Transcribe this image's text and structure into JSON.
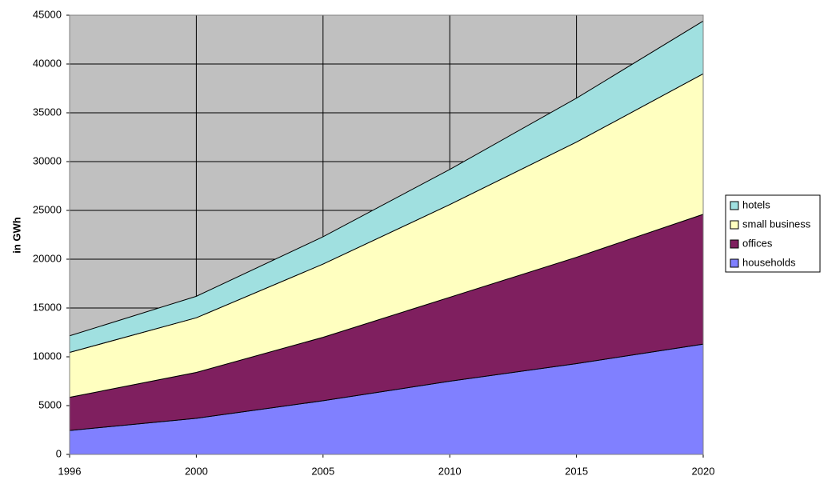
{
  "chart_data": {
    "type": "stacked_area",
    "y_label": "in GWh",
    "categories": [
      "1996",
      "2000",
      "2005",
      "2010",
      "2015",
      "2020"
    ],
    "series": [
      {
        "name": "households",
        "color": "#8080ff",
        "values": [
          2450,
          3700,
          5500,
          7500,
          9300,
          11300
        ]
      },
      {
        "name": "offices",
        "color": "#7f1f5f",
        "values": [
          3400,
          4700,
          6500,
          8600,
          10900,
          13300
        ]
      },
      {
        "name": "small business",
        "color": "#ffffc0",
        "values": [
          4600,
          5600,
          7500,
          9500,
          11800,
          14400
        ]
      },
      {
        "name": "hotels",
        "color": "#a0e0e0",
        "values": [
          1700,
          2200,
          2800,
          3600,
          4500,
          5400
        ]
      }
    ],
    "ylim": [
      0,
      45000
    ],
    "yticks": [
      0,
      5000,
      10000,
      15000,
      20000,
      25000,
      30000,
      35000,
      40000,
      45000
    ],
    "grid": true,
    "plot_background": "#c0c0c0",
    "legend": "right"
  }
}
